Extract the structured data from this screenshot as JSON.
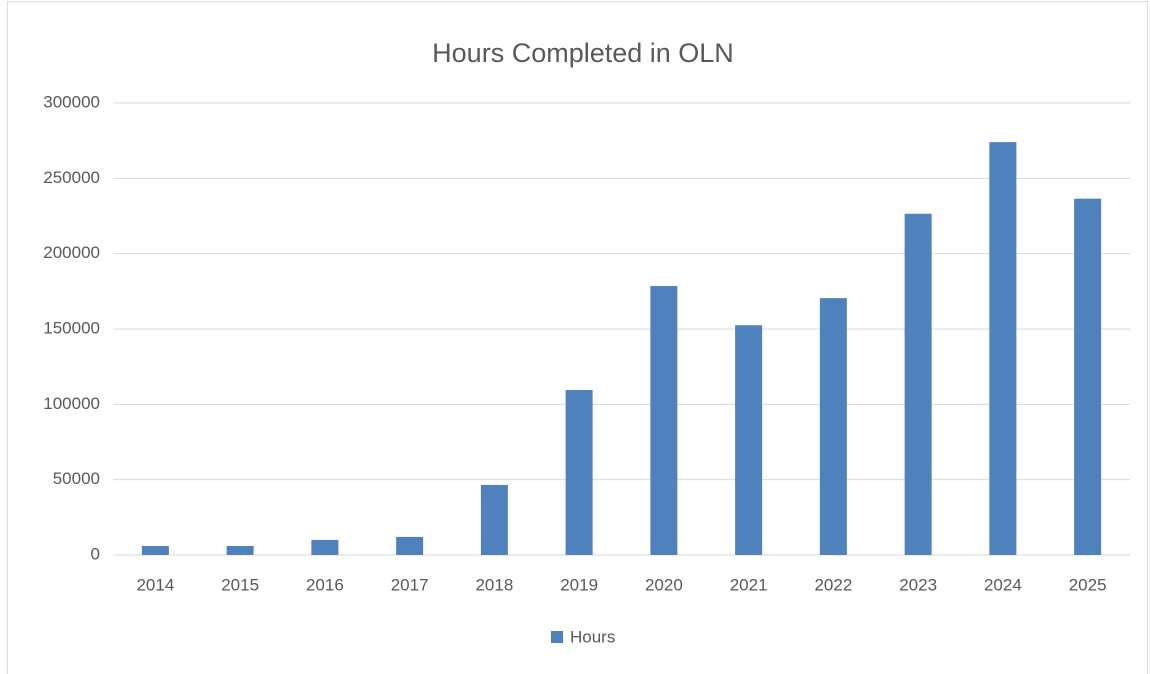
{
  "chart_data": {
    "type": "bar",
    "title": "Hours Completed in OLN",
    "categories": [
      "2014",
      "2015",
      "2016",
      "2017",
      "2018",
      "2019",
      "2020",
      "2021",
      "2022",
      "2023",
      "2024",
      "2025"
    ],
    "series": [
      {
        "name": "Hours",
        "color": "#4f81bd",
        "values": [
          6000,
          6000,
          10000,
          12000,
          46500,
          109500,
          178500,
          152500,
          170500,
          226500,
          274000,
          236500
        ]
      }
    ],
    "ylim": [
      0,
      300000
    ],
    "yticks": [
      0,
      50000,
      100000,
      150000,
      200000,
      250000,
      300000
    ],
    "grid": true,
    "legend": "bottom"
  }
}
